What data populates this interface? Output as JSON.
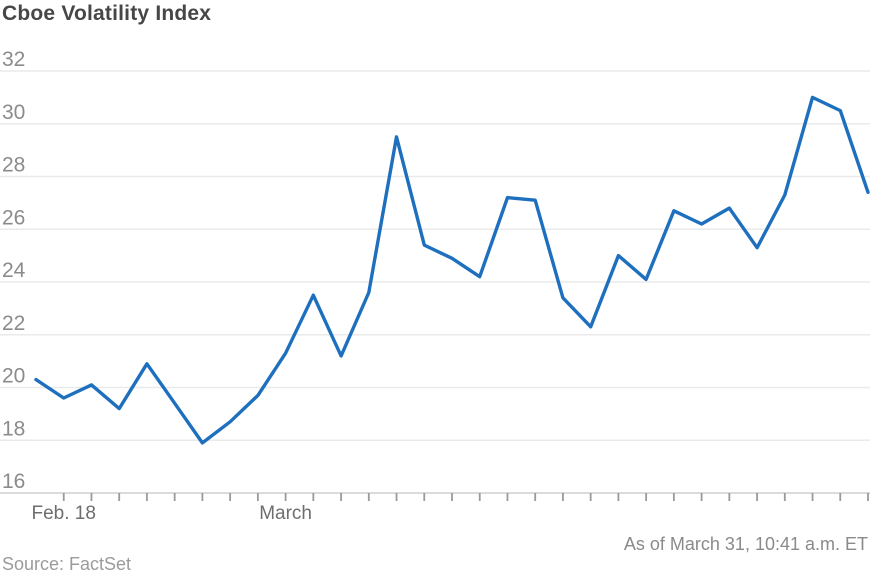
{
  "title": "Cboe Volatility Index",
  "footer": {
    "source": "Source: FactSet",
    "as_of": "As of March 31, 10:41 a.m. ET"
  },
  "colors": {
    "line": "#1E70BF",
    "title_text": "#474747",
    "axis_text": "#8B8B8B",
    "x_axis_text": "#6E6E6E",
    "footer_text": "#9B9B9B",
    "asof_text": "#8A8A8A",
    "gridline": "#EAEAEA",
    "baseline": "#CFCFCF",
    "tick": "#9A9A9A",
    "background": "#FFFFFF"
  },
  "chart_data": {
    "type": "line",
    "title": "Cboe Volatility Index",
    "series": [
      {
        "name": "Cboe Volatility Index",
        "values": [
          20.3,
          19.6,
          20.1,
          19.2,
          20.9,
          19.4,
          17.9,
          18.7,
          19.7,
          21.3,
          23.5,
          21.2,
          23.6,
          29.5,
          25.4,
          24.9,
          24.2,
          27.2,
          27.1,
          23.4,
          22.3,
          25.0,
          24.1,
          26.7,
          26.2,
          26.8,
          25.3,
          27.3,
          31.0,
          30.5,
          27.4
        ]
      }
    ],
    "ylim": [
      16,
      32
    ],
    "y_ticks": [
      16,
      18,
      20,
      22,
      24,
      26,
      28,
      30,
      32
    ],
    "x_tick_labels": [
      {
        "label": "Feb. 18",
        "index": 1
      },
      {
        "label": "March",
        "index": 9
      }
    ],
    "grid": "horizontal",
    "legend": "none",
    "annotations": [
      "As of March 31, 10:41 a.m. ET",
      "Source: FactSet"
    ]
  }
}
